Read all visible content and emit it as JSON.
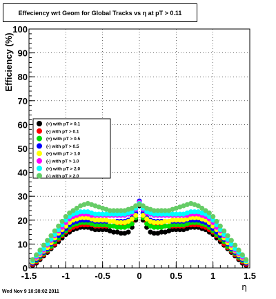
{
  "chart_data": {
    "type": "scatter",
    "title": "Effeciency wrt Geom for Global Tracks vs   η at pT > 0.11",
    "xlabel": "η",
    "ylabel": "Efficiency (%)",
    "xlim": [
      -1.5,
      1.5
    ],
    "ylim": [
      0,
      100
    ],
    "x_ticks": [
      "-1.5",
      "-1",
      "-0.5",
      "0",
      "0.5",
      "1",
      "1.5"
    ],
    "y_ticks": [
      "0",
      "10",
      "20",
      "30",
      "40",
      "50",
      "60",
      "70",
      "80",
      "90",
      "100"
    ],
    "grid": true,
    "legend_position": "middle-left",
    "x": [
      -1.45,
      -1.4,
      -1.35,
      -1.3,
      -1.25,
      -1.2,
      -1.15,
      -1.1,
      -1.05,
      -1.0,
      -0.95,
      -0.9,
      -0.85,
      -0.8,
      -0.75,
      -0.7,
      -0.65,
      -0.6,
      -0.55,
      -0.5,
      -0.45,
      -0.4,
      -0.35,
      -0.3,
      -0.25,
      -0.2,
      -0.15,
      -0.1,
      -0.05,
      0.0,
      0.05,
      0.1,
      0.15,
      0.2,
      0.25,
      0.3,
      0.35,
      0.4,
      0.45,
      0.5,
      0.55,
      0.6,
      0.65,
      0.7,
      0.75,
      0.8,
      0.85,
      0.9,
      0.95,
      1.0,
      1.05,
      1.1,
      1.15,
      1.2,
      1.25,
      1.3,
      1.35,
      1.4,
      1.45
    ],
    "series": [
      {
        "name": "(+) with pT > 0.1",
        "color": "#000000",
        "values": [
          1,
          2,
          3.5,
          5,
          6.5,
          8,
          9.5,
          11,
          12.5,
          14,
          15,
          16,
          16.5,
          17,
          17,
          17,
          16.5,
          16,
          16,
          16,
          16,
          15.5,
          15,
          15,
          14.5,
          14.5,
          15,
          17,
          20,
          26,
          20,
          17,
          15,
          14.5,
          14.5,
          15,
          15,
          15.5,
          16,
          16,
          16,
          16,
          16.5,
          17,
          17,
          17,
          16.5,
          16,
          15,
          14,
          12.5,
          11,
          9.5,
          8,
          6.5,
          5,
          3.5,
          2,
          1
        ]
      },
      {
        "name": "(-) with pT > 0.1",
        "color": "#ff0000",
        "values": [
          1.5,
          2.5,
          4,
          5.5,
          7,
          8.5,
          10,
          12,
          13.5,
          15,
          16,
          17,
          17.5,
          18,
          18,
          18,
          18,
          17.5,
          17.5,
          17.5,
          17.5,
          17.5,
          17.5,
          17.5,
          17.5,
          18,
          18,
          19,
          21,
          26.5,
          21,
          19,
          18,
          18,
          17.5,
          17.5,
          17.5,
          17.5,
          17.5,
          17.5,
          17.5,
          17.5,
          18,
          18,
          18,
          18,
          17.5,
          17,
          16,
          15,
          13.5,
          12,
          10,
          8.5,
          7,
          5.5,
          4,
          2.5,
          1.5
        ]
      },
      {
        "name": "(+) with pT > 0.5",
        "color": "#00dd00",
        "values": [
          2,
          3,
          4.5,
          6,
          7.5,
          9,
          11,
          12.5,
          14,
          15.5,
          17,
          18,
          18.5,
          19,
          19,
          19,
          18.5,
          18,
          18,
          18,
          18,
          17.5,
          17.5,
          17,
          17,
          17,
          17.5,
          18.5,
          21,
          27,
          21,
          18.5,
          17.5,
          17,
          17,
          17,
          17.5,
          17.5,
          18,
          18,
          18,
          18,
          18.5,
          19,
          19,
          19,
          18.5,
          18,
          17,
          15.5,
          14,
          12.5,
          11,
          9,
          7.5,
          6,
          4.5,
          3,
          2
        ]
      },
      {
        "name": "(-) with pT > 0.5",
        "color": "#0000ff",
        "values": [
          2,
          3.5,
          5,
          6.5,
          8,
          10,
          12,
          13.5,
          15,
          16.5,
          18,
          19,
          19.5,
          20,
          20,
          20,
          20,
          19.5,
          19.5,
          19.5,
          19.5,
          19.5,
          19.5,
          19.5,
          19.5,
          19.5,
          20,
          21,
          23,
          28,
          23,
          21,
          20,
          19.5,
          19.5,
          19.5,
          19.5,
          19.5,
          19.5,
          19.5,
          19.5,
          19.5,
          20,
          20,
          20,
          20,
          19.5,
          19,
          18,
          16.5,
          15,
          13.5,
          12,
          10,
          8,
          6.5,
          5,
          3.5,
          2
        ]
      },
      {
        "name": "(+) with pT > 1.0",
        "color": "#ffff00",
        "values": [
          2.5,
          4,
          5.5,
          7,
          8.5,
          10.5,
          12.5,
          14.5,
          16,
          17.5,
          19,
          20,
          20.5,
          21,
          21,
          21,
          20.5,
          20,
          20,
          20,
          20,
          19.5,
          19.5,
          19,
          19,
          19,
          19.5,
          20.5,
          22,
          27,
          22,
          20.5,
          19.5,
          19,
          19,
          19,
          19.5,
          19.5,
          20,
          20,
          20,
          20,
          20.5,
          21,
          21,
          21,
          20.5,
          20,
          19,
          17.5,
          16,
          14.5,
          12.5,
          10.5,
          8.5,
          7,
          5.5,
          4,
          2.5
        ]
      },
      {
        "name": "(-) with pT > 1.0",
        "color": "#ff00ff",
        "values": [
          3,
          4.5,
          6,
          7.5,
          9.5,
          11.5,
          13.5,
          15.5,
          17,
          19,
          20.5,
          21.5,
          22,
          22.5,
          22.5,
          22.5,
          22,
          22,
          22,
          22,
          22,
          22,
          22,
          22,
          22,
          22,
          22.5,
          23,
          24.5,
          27.5,
          24.5,
          23,
          22.5,
          22,
          22,
          22,
          22,
          22,
          22,
          22,
          22,
          22,
          22,
          22.5,
          22.5,
          22.5,
          22,
          21.5,
          20.5,
          19,
          17,
          15.5,
          13.5,
          11.5,
          9.5,
          7.5,
          6,
          4.5,
          3
        ]
      },
      {
        "name": "(+) with pT > 2.0",
        "color": "#00ffff",
        "values": [
          3,
          5,
          6.5,
          8,
          10,
          12,
          14,
          16,
          18,
          20,
          21.5,
          22.5,
          23,
          23.5,
          23.5,
          23.5,
          23,
          22.5,
          22.5,
          22.5,
          22.5,
          22.5,
          22.5,
          22.5,
          22.5,
          22.5,
          23,
          23.5,
          25,
          27,
          25,
          23.5,
          23,
          22.5,
          22.5,
          22.5,
          22.5,
          22.5,
          22.5,
          22.5,
          22.5,
          22.5,
          23,
          23.5,
          23.5,
          23.5,
          23,
          22.5,
          21.5,
          20,
          18,
          16,
          14,
          12,
          10,
          8,
          6.5,
          5,
          3
        ]
      },
      {
        "name": "(-) with pT > 2.0",
        "color": "#66cc66",
        "values": [
          3.5,
          5.5,
          7.5,
          9.5,
          11.5,
          13.5,
          15.5,
          17.5,
          19.5,
          21.5,
          23,
          24,
          25,
          26,
          26.5,
          27,
          26.5,
          26,
          25.5,
          25,
          24.5,
          24,
          24,
          24,
          24,
          24,
          24.5,
          25,
          26,
          26.5,
          26,
          25,
          24.5,
          24,
          24,
          24,
          24,
          24,
          24.5,
          25,
          25.5,
          26,
          26.5,
          27,
          26.5,
          26,
          25,
          24,
          23,
          21.5,
          19.5,
          17.5,
          15.5,
          13.5,
          11.5,
          9.5,
          7.5,
          5.5,
          3.5
        ]
      }
    ]
  },
  "footer": {
    "timestamp": "Wed Nov  9 10:38:02 2011"
  }
}
